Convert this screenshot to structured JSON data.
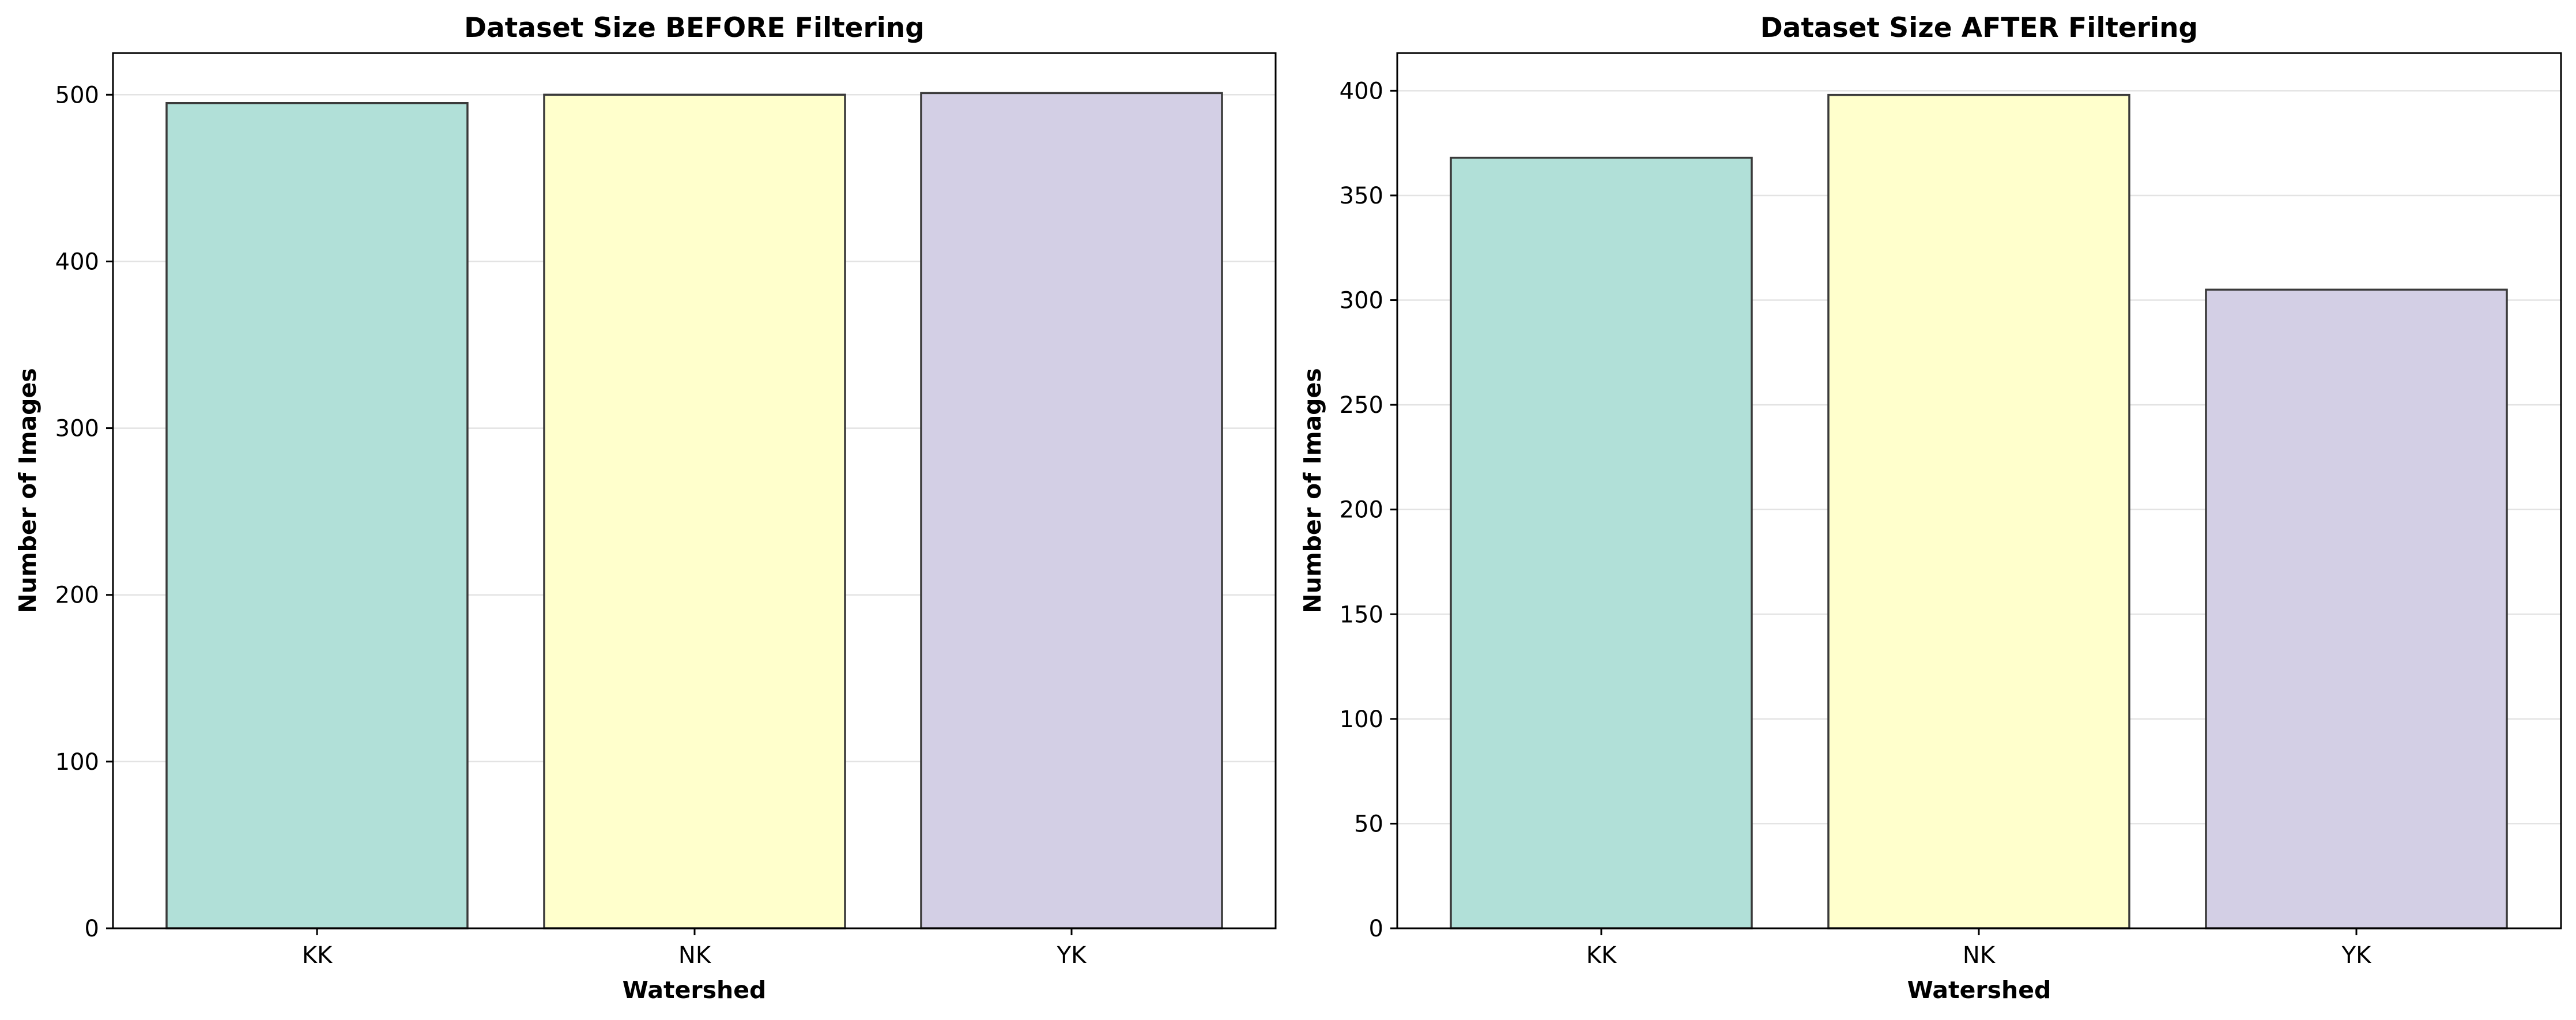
{
  "chart_data": [
    {
      "type": "bar",
      "title": "Dataset Size BEFORE Filtering",
      "xlabel": "Watershed",
      "ylabel": "Number of Images",
      "categories": [
        "KK",
        "NK",
        "YK"
      ],
      "values": [
        495,
        500,
        501
      ],
      "colors": [
        "#b1e0d8",
        "#ffffcc",
        "#d3cfe5"
      ],
      "ylim": [
        0,
        525
      ],
      "yticks": [
        0,
        100,
        200,
        300,
        400,
        500
      ],
      "grid": "y",
      "legend": "none"
    },
    {
      "type": "bar",
      "title": "Dataset Size AFTER Filtering",
      "xlabel": "Watershed",
      "ylabel": "Number of Images",
      "categories": [
        "KK",
        "NK",
        "YK"
      ],
      "values": [
        368,
        398,
        305
      ],
      "colors": [
        "#b1e0d8",
        "#ffffcc",
        "#d3cfe5"
      ],
      "ylim": [
        0,
        418
      ],
      "yticks": [
        0,
        50,
        100,
        150,
        200,
        250,
        300,
        350,
        400
      ],
      "grid": "y",
      "legend": "none"
    }
  ]
}
